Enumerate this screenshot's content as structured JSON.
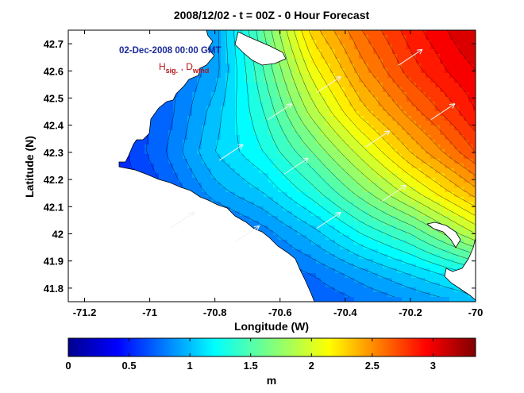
{
  "chart_data": {
    "type": "heatmap",
    "title": "2008/12/02 - t = 00Z - 0 Hour Forecast",
    "xlabel": "Longitude (W)",
    "ylabel": "Latitude (N)",
    "xlim": [
      -71.25,
      -70.0
    ],
    "ylim": [
      41.75,
      42.75
    ],
    "x_ticks": [
      -71.2,
      -71.0,
      -70.8,
      -70.6,
      -70.4,
      -70.2,
      -70.0
    ],
    "x_tick_labels": [
      "-71.2",
      "-71",
      "-70.8",
      "-70.6",
      "-70.4",
      "-70.2",
      "-70"
    ],
    "y_ticks": [
      41.8,
      41.9,
      42.0,
      42.1,
      42.2,
      42.3,
      42.4,
      42.5,
      42.6,
      42.7
    ],
    "y_tick_labels": [
      "41.8",
      "41.9",
      "42",
      "42.1",
      "42.2",
      "42.3",
      "42.4",
      "42.5",
      "42.6",
      "42.7"
    ],
    "annotation_date": "02-Dec-2008 00:00",
    "annotation_gmt": "GMT",
    "legend_h": "H",
    "legend_h_sub": "sig.",
    "legend_sep": " , ",
    "legend_d": "D",
    "legend_d_sub": "wind",
    "colorbar": {
      "label": "m",
      "range": [
        0,
        3.35
      ],
      "ticks": [
        0,
        0.5,
        1,
        1.5,
        2,
        2.5,
        3
      ],
      "tick_labels": [
        "0",
        "0.5",
        "1",
        "1.5",
        "2",
        "2.5",
        "3"
      ]
    },
    "contour_field_m": {
      "description_units": "m",
      "x": [
        -71.25,
        -71.1,
        -70.95,
        -70.8,
        -70.65,
        -70.5,
        -70.35,
        -70.2,
        -70.05,
        -70.0
      ],
      "y": [
        42.75,
        42.6,
        42.45,
        42.3,
        42.15,
        42.0,
        41.85,
        41.75
      ],
      "z": [
        [
          0.6,
          0.7,
          0.8,
          0.95,
          1.6,
          2.25,
          2.6,
          2.85,
          3.05,
          3.1
        ],
        [
          0.55,
          0.65,
          0.75,
          0.95,
          1.5,
          2.05,
          2.45,
          2.75,
          2.95,
          3.0
        ],
        [
          0.5,
          0.6,
          0.75,
          1.05,
          1.4,
          1.85,
          2.25,
          2.55,
          2.8,
          2.9
        ],
        [
          0.5,
          0.55,
          0.8,
          1.1,
          1.3,
          1.6,
          1.95,
          2.3,
          2.6,
          2.7
        ],
        [
          0.4,
          0.5,
          0.7,
          0.95,
          1.1,
          1.35,
          1.65,
          1.95,
          2.25,
          2.35
        ],
        [
          0.35,
          0.45,
          0.55,
          0.7,
          0.85,
          1.05,
          1.3,
          1.5,
          1.8,
          1.9
        ],
        [
          0.3,
          0.35,
          0.45,
          0.55,
          0.7,
          0.8,
          0.95,
          1.1,
          1.25,
          1.3
        ],
        [
          0.25,
          0.3,
          0.4,
          0.5,
          0.6,
          0.7,
          0.8,
          0.9,
          1.0,
          1.05
        ]
      ]
    },
    "wind_direction": "southwest-to-northeast",
    "colors": {
      "land": "#ffffff",
      "axes": "#000000",
      "wind_arrows": "#f2f2f2",
      "title_blue": "#1a2a9c",
      "legend_red": "#b5141a",
      "colormap": "jet"
    }
  }
}
